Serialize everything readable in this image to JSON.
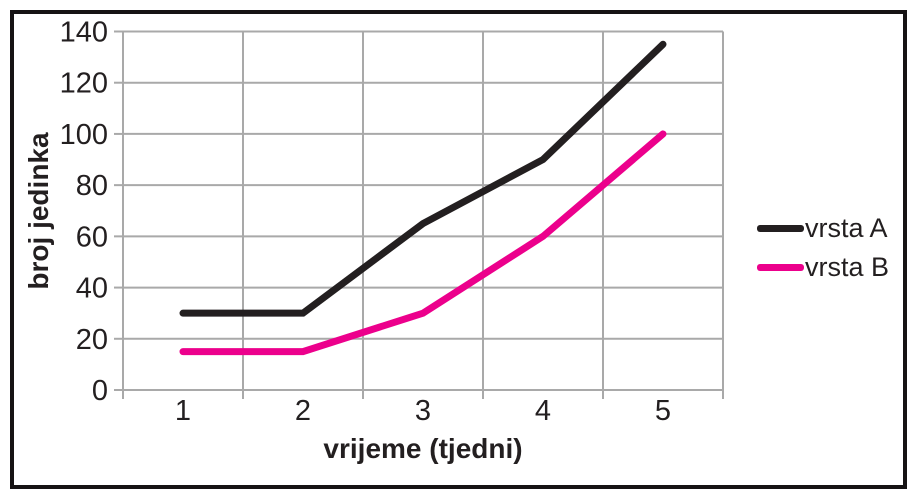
{
  "figure": {
    "background": "#ffffff",
    "border_color": "#161314"
  },
  "chart_data": {
    "type": "line",
    "title": "",
    "xlabel": "vrijeme (tjedni)",
    "ylabel": "broj jedinka",
    "categories": [
      1,
      2,
      3,
      4,
      5
    ],
    "x_ticks": [
      "1",
      "2",
      "3",
      "4",
      "5"
    ],
    "y_ticks": [
      0,
      20,
      40,
      60,
      80,
      100,
      120,
      140
    ],
    "ylim": [
      0,
      140
    ],
    "grid": true,
    "gridline_color": "#a9a9a9",
    "text_color": "#231f20",
    "legend_position": "right",
    "series": [
      {
        "name": "vrsta A",
        "color": "#231f20",
        "values": [
          30,
          30,
          65,
          90,
          135
        ]
      },
      {
        "name": "vrsta B",
        "color": "#ec008c",
        "values": [
          15,
          15,
          30,
          60,
          100
        ]
      }
    ]
  }
}
